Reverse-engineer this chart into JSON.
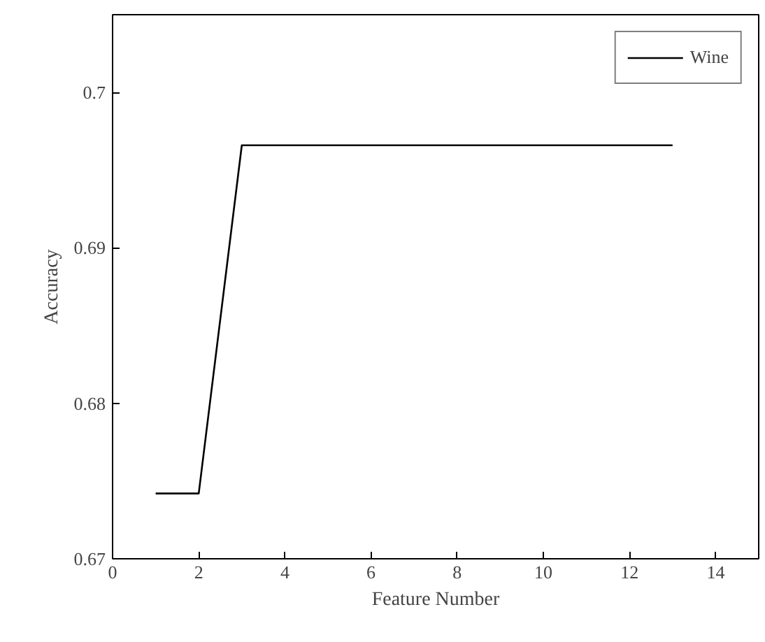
{
  "chart_data": {
    "type": "line",
    "xlabel": "Feature Number",
    "ylabel": "Accuracy",
    "x": [
      1,
      2,
      3,
      4,
      5,
      6,
      7,
      8,
      9,
      10,
      11,
      12,
      13
    ],
    "series": [
      {
        "name": "Wine",
        "color": "#000000",
        "values": [
          0.6742,
          0.6742,
          0.6966,
          0.6966,
          0.6966,
          0.6966,
          0.6966,
          0.6966,
          0.6966,
          0.6966,
          0.6966,
          0.6966,
          0.6966
        ]
      }
    ],
    "xlim": [
      0,
      15
    ],
    "ylim": [
      0.67,
      0.705
    ],
    "xticks": [
      0,
      2,
      4,
      6,
      8,
      10,
      12,
      14
    ],
    "yticks": [
      {
        "value": 0.67,
        "label": "0.67"
      },
      {
        "value": 0.68,
        "label": "0.68"
      },
      {
        "value": 0.69,
        "label": "0.69"
      },
      {
        "value": 0.7,
        "label": "0.7"
      }
    ],
    "grid": false,
    "legend": "top right",
    "marker": "none",
    "line_style": "solid"
  }
}
